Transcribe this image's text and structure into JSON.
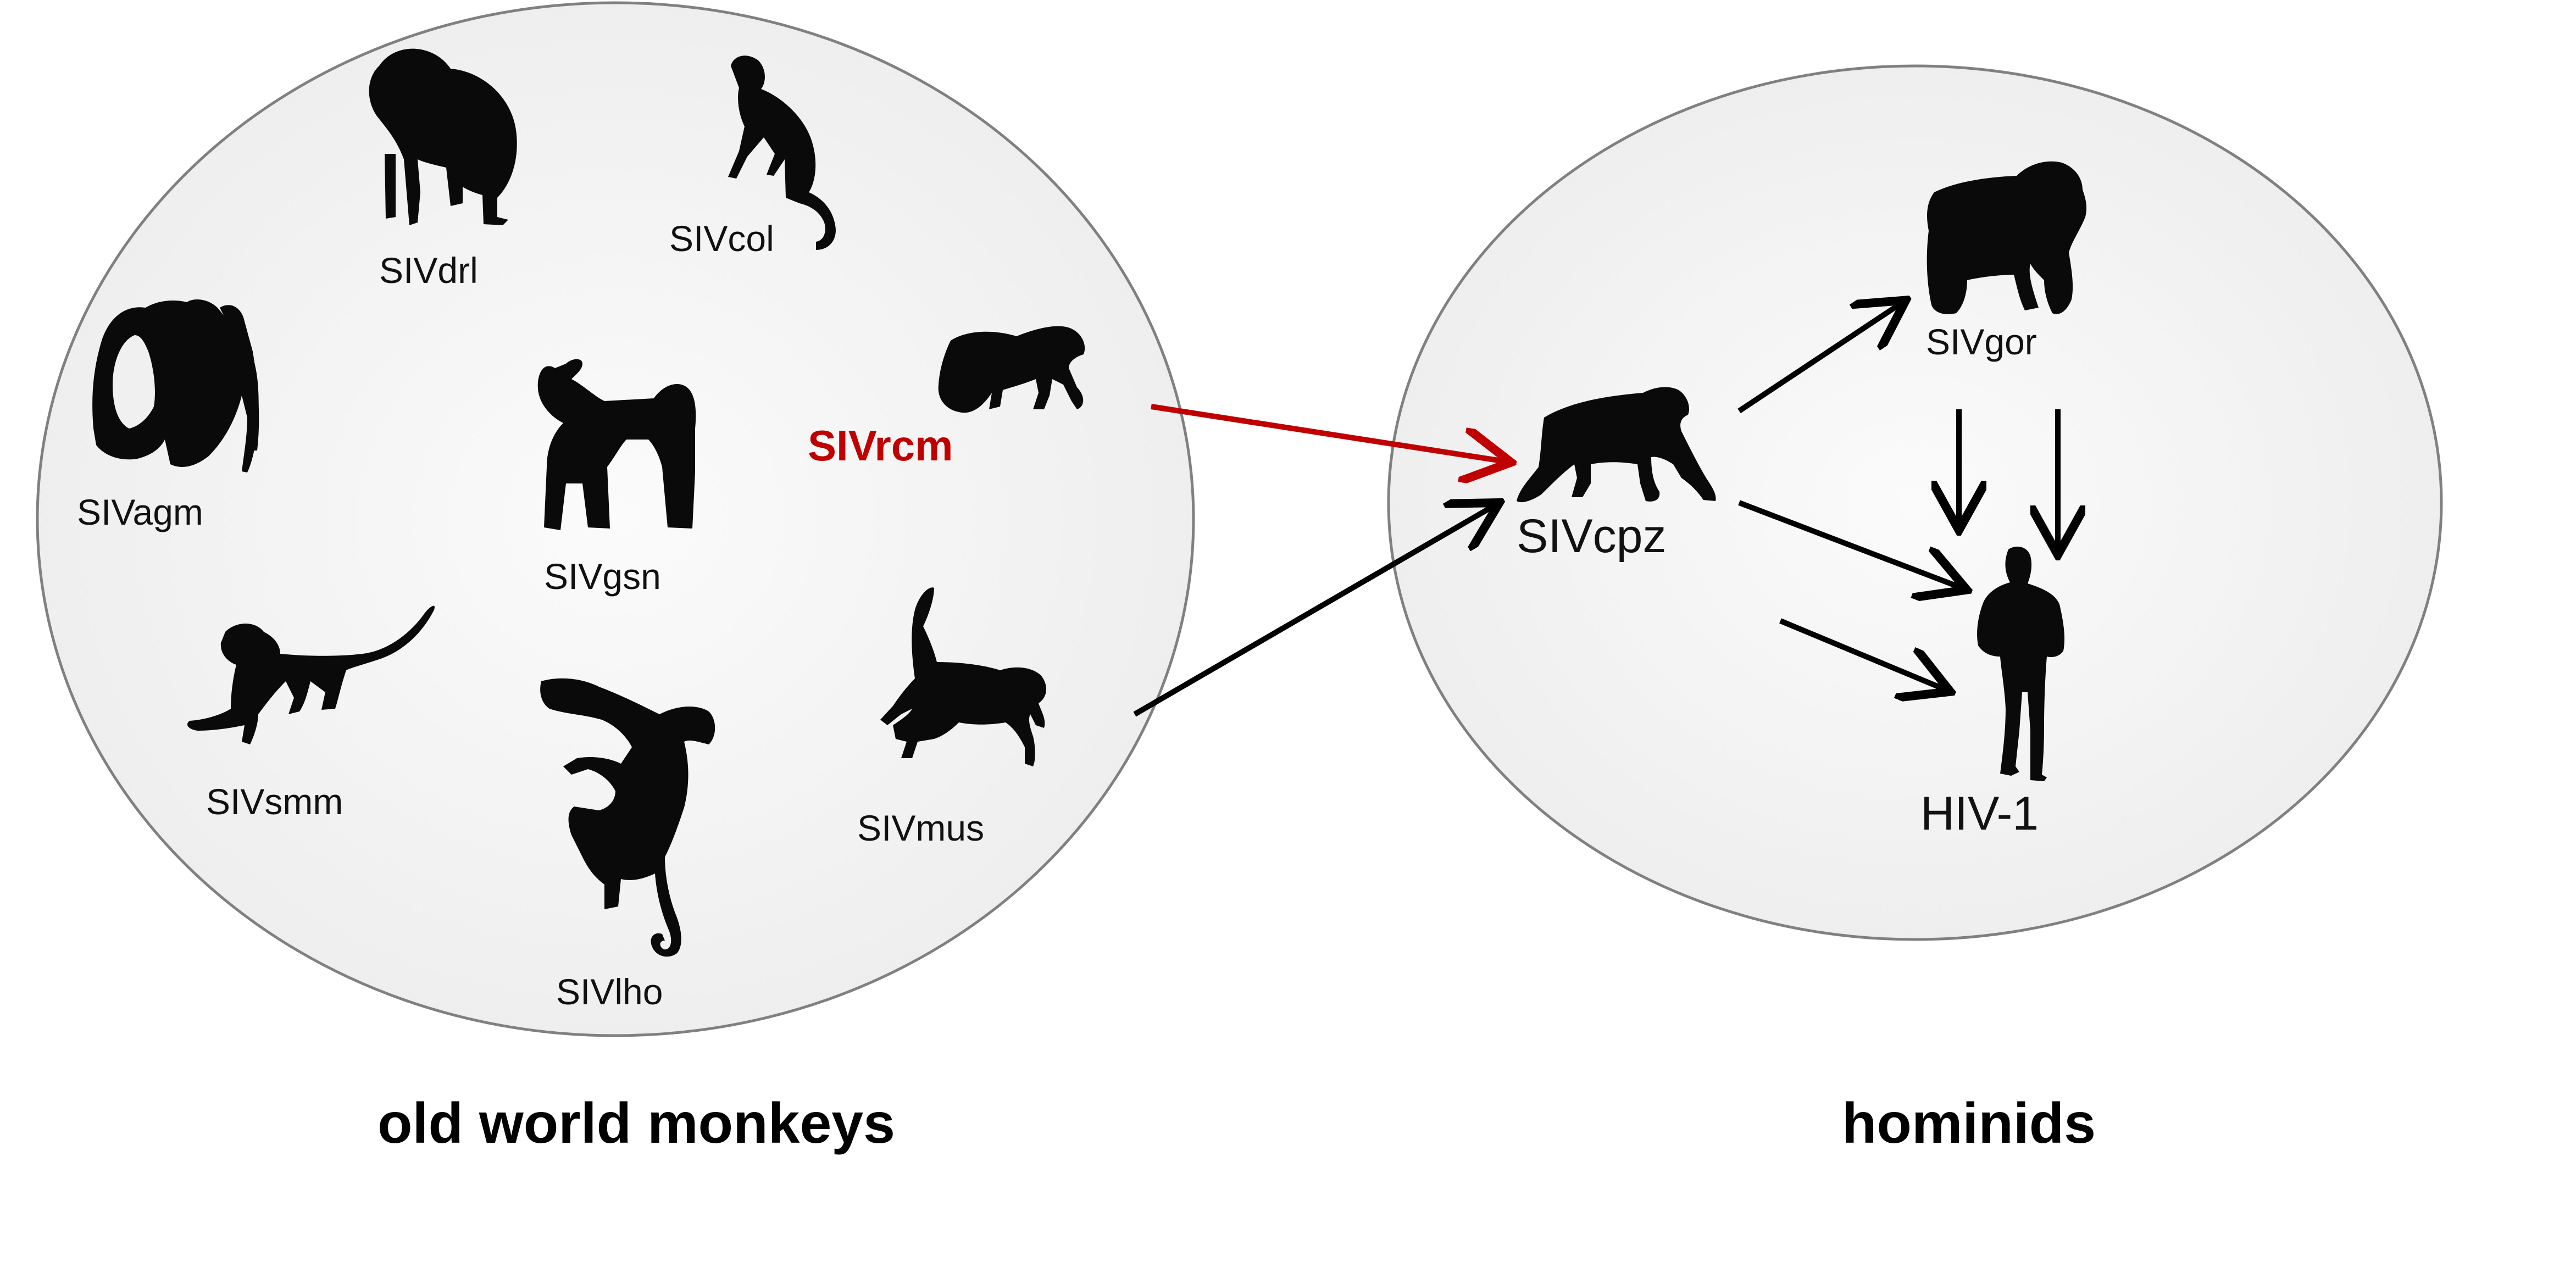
{
  "groups": {
    "old_world_monkeys": {
      "label": "old world monkeys",
      "viruses": {
        "drl": "SIVdrl",
        "col": "SIVcol",
        "agm": "SIVagm",
        "gsn": "SIVgsn",
        "rcm": "SIVrcm",
        "smm": "SIVsmm",
        "lho": "SIVlho",
        "mus": "SIVmus"
      }
    },
    "hominids": {
      "label": "hominids",
      "viruses": {
        "cpz": "SIVcpz",
        "gor": "SIVgor",
        "hiv": "HIV-1"
      }
    }
  },
  "colors": {
    "highlight": "#c00000",
    "arrow": "#000000",
    "ellipse_fill": "#f2f2f2",
    "ellipse_stroke": "#808080"
  },
  "icons": {
    "drl": "drill-silhouette-icon",
    "col": "colobus-silhouette-icon",
    "agm": "agm-monkey-silhouette-icon",
    "gsn": "guenon-silhouette-icon",
    "rcm": "mangabey-silhouette-icon",
    "smm": "sooty-mangabey-silhouette-icon",
    "lho": "lhoest-monkey-silhouette-icon",
    "mus": "mustached-monkey-silhouette-icon",
    "cpz": "chimpanzee-silhouette-icon",
    "gor": "gorilla-silhouette-icon",
    "human": "human-silhouette-icon"
  }
}
